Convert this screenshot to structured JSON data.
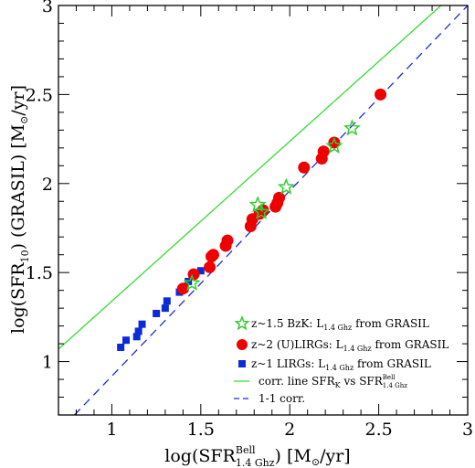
{
  "chart_data": {
    "type": "scatter",
    "title": "",
    "xlabel": "log(SFR Bell 1.4 Ghz) [M⊙/yr]",
    "ylabel": "log(SFR 10) (GRASIL) [M⊙/yr]",
    "xlabel_parts": {
      "pre": "log(SFR",
      "sup": "Bell",
      "sub": "1.4 Ghz",
      "post": ") [M",
      "odot": "⊙",
      "tail": "/yr]"
    },
    "ylabel_parts": {
      "pre": "log(SFR",
      "sub": "10",
      "post": ") (GRASIL) [M",
      "odot": "⊙",
      "tail": "/yr]"
    },
    "xlim": [
      0.7,
      3.0
    ],
    "ylim": [
      0.7,
      3.0
    ],
    "x_ticks": [
      {
        "v": 1,
        "label": "1"
      },
      {
        "v": 1.5,
        "label": "1.5"
      },
      {
        "v": 2,
        "label": "2"
      },
      {
        "v": 2.5,
        "label": "2.5"
      },
      {
        "v": 3,
        "label": "3"
      }
    ],
    "y_ticks": [
      {
        "v": 1,
        "label": "1"
      },
      {
        "v": 1.5,
        "label": "1.5"
      },
      {
        "v": 2,
        "label": "2"
      },
      {
        "v": 2.5,
        "label": "2.5"
      },
      {
        "v": 3,
        "label": "3"
      }
    ],
    "grid": false,
    "legend_position": "bottom-right",
    "series": [
      {
        "key": "bzk",
        "marker": "star",
        "color": "#33cc33",
        "legend": {
          "pre": "z~1.5 BzK: L",
          "sub": "1.4 Ghz",
          "post": " from GRASIL"
        },
        "points": [
          [
            1.45,
            1.44
          ],
          [
            1.82,
            1.88
          ],
          [
            1.84,
            1.84
          ],
          [
            1.98,
            1.98
          ],
          [
            2.25,
            2.21
          ],
          [
            2.35,
            2.31
          ]
        ]
      },
      {
        "key": "ulirg",
        "marker": "circle",
        "color": "#ee0000",
        "legend": {
          "pre": "z~2 (U)LIRGs: L",
          "sub": "1.4 Ghz",
          "post": " from GRASIL"
        },
        "points": [
          [
            1.4,
            1.41
          ],
          [
            1.46,
            1.49
          ],
          [
            1.55,
            1.53
          ],
          [
            1.56,
            1.59
          ],
          [
            1.57,
            1.6
          ],
          [
            1.64,
            1.65
          ],
          [
            1.65,
            1.68
          ],
          [
            1.78,
            1.76
          ],
          [
            1.79,
            1.8
          ],
          [
            1.83,
            1.83
          ],
          [
            1.85,
            1.85
          ],
          [
            1.92,
            1.87
          ],
          [
            1.93,
            1.89
          ],
          [
            1.94,
            1.92
          ],
          [
            2.08,
            2.09
          ],
          [
            2.18,
            2.14
          ],
          [
            2.19,
            2.18
          ],
          [
            2.25,
            2.23
          ],
          [
            2.51,
            2.5
          ]
        ]
      },
      {
        "key": "lirg",
        "marker": "square",
        "color": "#0b2bd9",
        "legend": {
          "pre": "z~1 LIRGs: L",
          "sub": "1.4 Ghz",
          "post": " from GRASIL"
        },
        "points": [
          [
            1.05,
            1.08
          ],
          [
            1.08,
            1.12
          ],
          [
            1.14,
            1.14
          ],
          [
            1.15,
            1.17
          ],
          [
            1.17,
            1.21
          ],
          [
            1.25,
            1.27
          ],
          [
            1.3,
            1.3
          ],
          [
            1.31,
            1.34
          ],
          [
            1.38,
            1.39
          ],
          [
            1.41,
            1.41
          ],
          [
            1.43,
            1.45
          ],
          [
            1.5,
            1.51
          ]
        ]
      }
    ],
    "lines": [
      {
        "key": "corr",
        "style": "solid",
        "color": "#33dd33",
        "legend": {
          "pre": "corr. line SFR",
          "sub": "K",
          "mid": " vs SFR",
          "sup2": "Bell",
          "sub2": "1.4 Ghz"
        },
        "points": [
          [
            0.7,
            1.07
          ],
          [
            2.85,
            3.0
          ]
        ]
      },
      {
        "key": "one2one",
        "style": "dashed",
        "color": "#1a2fd6",
        "legend": {
          "pre": "1-1 corr."
        },
        "points": [
          [
            0.79,
            0.7
          ],
          [
            3.0,
            3.0
          ]
        ]
      }
    ]
  }
}
